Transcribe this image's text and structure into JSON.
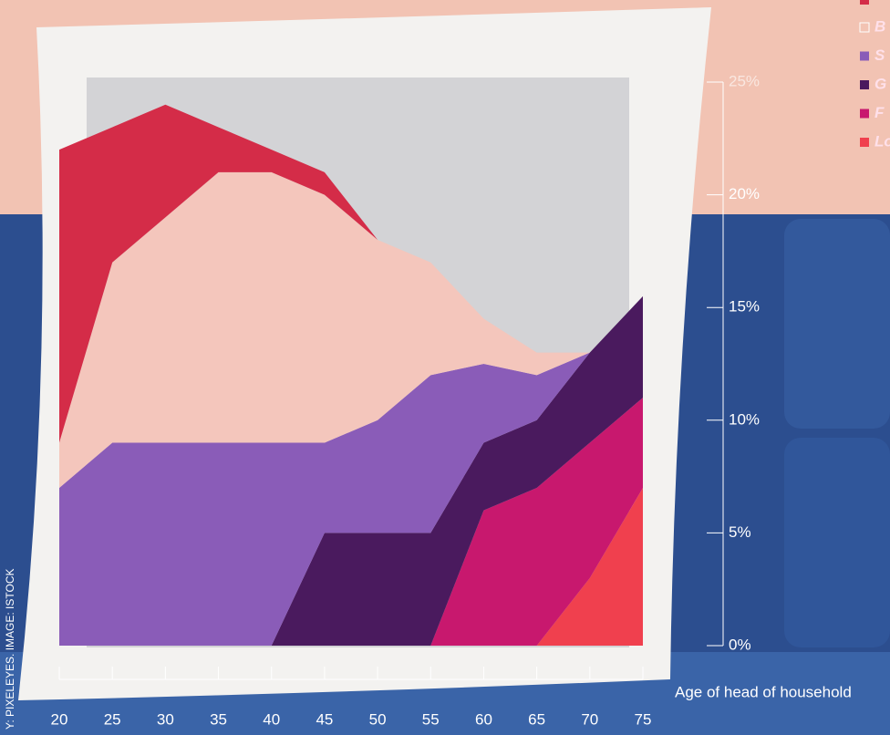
{
  "chart_data": {
    "type": "area",
    "stacked": true,
    "x_label": "Age of head of household",
    "credit": "Y: PIXELEYES. IMAGE: ISTOCK",
    "x": [
      20,
      25,
      30,
      35,
      40,
      45,
      50,
      55,
      60,
      65,
      70,
      75
    ],
    "xlim": [
      20,
      75
    ],
    "xticks": [
      20,
      25,
      30,
      35,
      40,
      45,
      50,
      55,
      60,
      65,
      70,
      75
    ],
    "ylim": [
      0,
      25
    ],
    "yticks": [
      {
        "value": 0,
        "label": "0%"
      },
      {
        "value": 5,
        "label": "5%"
      },
      {
        "value": 10,
        "label": "10%"
      },
      {
        "value": 15,
        "label": "15%"
      },
      {
        "value": 20,
        "label": "20%"
      },
      {
        "value": 25,
        "label": "25%"
      }
    ],
    "series": [
      {
        "name": "Lo",
        "color": "#f0404e",
        "values": [
          0,
          0,
          0,
          0,
          0,
          0,
          0,
          0,
          0,
          0,
          3,
          7
        ]
      },
      {
        "name": "F",
        "color": "#c8186e",
        "values": [
          0,
          0,
          0,
          0,
          0,
          0,
          0,
          0,
          6,
          7,
          6,
          4
        ]
      },
      {
        "name": "G",
        "color": "#4a1a5e",
        "values": [
          0,
          0,
          0,
          0,
          0,
          5,
          5,
          5,
          3,
          3,
          4,
          4.5
        ]
      },
      {
        "name": "S",
        "color": "#8a5cb8",
        "values": [
          7,
          9,
          9,
          9,
          9,
          4,
          5,
          7,
          3.5,
          2,
          0,
          0
        ]
      },
      {
        "name": "B",
        "color": "#f4c6bc",
        "values": [
          2,
          8,
          10,
          12,
          12,
          11,
          8,
          5,
          2,
          1,
          0,
          0
        ]
      },
      {
        "name": null,
        "color": "#d42c48",
        "values": [
          13,
          6,
          5,
          2,
          1,
          1,
          0,
          0,
          0,
          0,
          0,
          0
        ]
      }
    ]
  }
}
